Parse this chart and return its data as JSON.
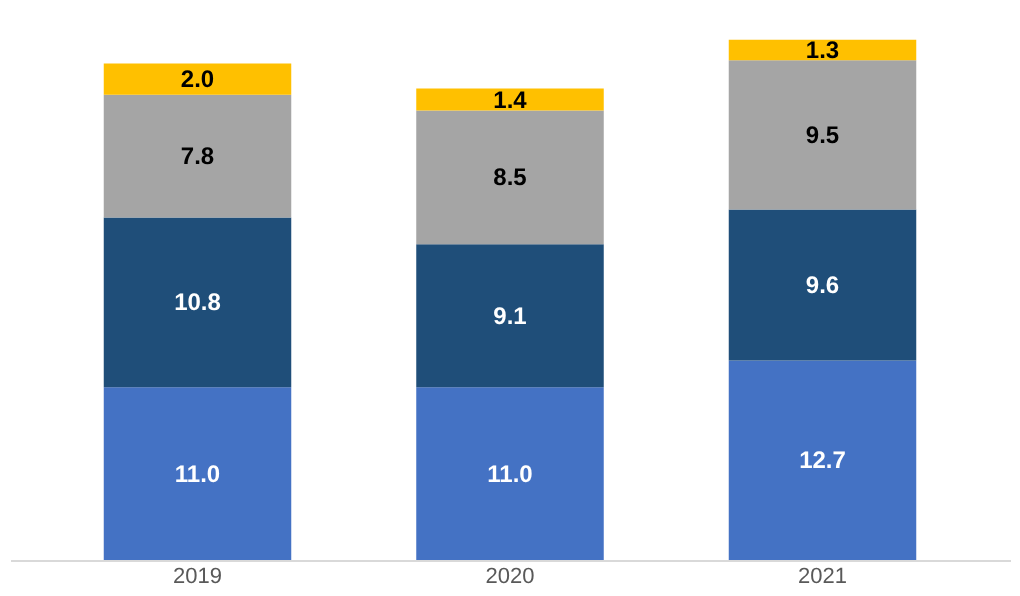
{
  "chart_data": {
    "type": "bar",
    "stacked": true,
    "grid": false,
    "categories": [
      "2019",
      "2020",
      "2021"
    ],
    "series": [
      {
        "color": "#4472c4",
        "values": [
          11.0,
          11.0,
          12.7
        ],
        "value_labels": [
          "11.0",
          "11.0",
          "12.7"
        ]
      },
      {
        "color": "#1f4e79",
        "values": [
          10.8,
          9.1,
          9.6
        ],
        "value_labels": [
          "10.8",
          "9.1",
          "9.6"
        ]
      },
      {
        "color": "#a5a5a5",
        "values": [
          7.8,
          8.5,
          9.5
        ],
        "value_labels": [
          "7.8",
          "8.5",
          "9.5"
        ]
      },
      {
        "color": "#ffc000",
        "values": [
          2.0,
          1.4,
          1.3
        ],
        "value_labels": [
          "2.0",
          "1.4",
          "1.3"
        ]
      }
    ]
  }
}
